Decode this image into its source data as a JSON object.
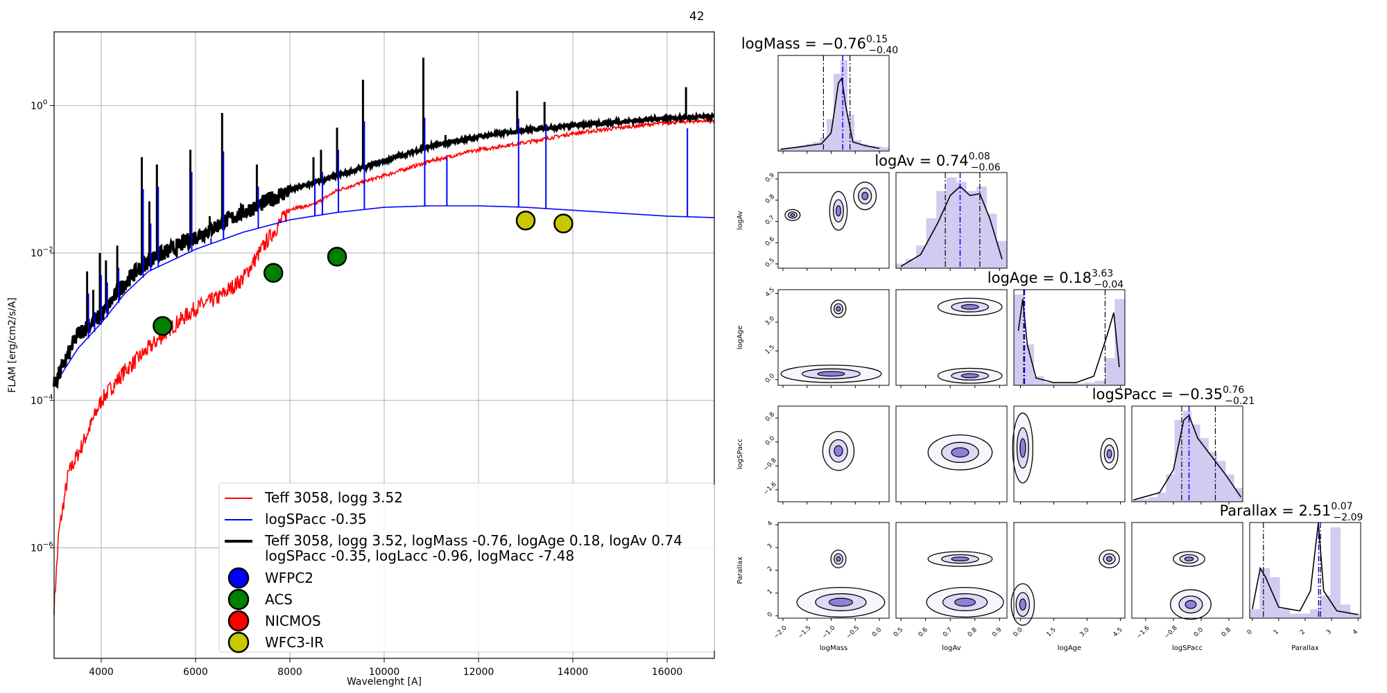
{
  "figure_id": "42",
  "colors": {
    "model_red": "#ff0000",
    "accretion_blue": "#0000ff",
    "total_black": "#000000",
    "corner_fill": "#7b68d6",
    "grid": "#b0b0b0",
    "marker_edge": "#000000"
  },
  "chart_data": [
    {
      "type": "line",
      "panel": "sed",
      "xlabel": "Wavelenght [A]",
      "ylabel": "FLAM [erg/cm2/s/A]",
      "xlim": [
        3000,
        17000
      ],
      "ylim_log10": [
        -7.5,
        1.0
      ],
      "yscale": "log",
      "grid": true,
      "legend_placement": "lower-right",
      "xticks": [
        "4000",
        "6000",
        "8000",
        "10000",
        "12000",
        "14000",
        "16000"
      ],
      "yticks": [
        {
          "base": "10",
          "exp": "0"
        },
        {
          "base": "10",
          "exp": "−2"
        },
        {
          "base": "10",
          "exp": "−4"
        },
        {
          "base": "10",
          "exp": "−6"
        }
      ],
      "series": [
        {
          "name": "Teff 3058, logg 3.52",
          "color": "#ff0000",
          "noisy": true,
          "x": [
            3000,
            3100,
            3300,
            3600,
            4000,
            4500,
            5000,
            5500,
            6000,
            6500,
            7000,
            7500,
            8000,
            8500,
            9000,
            10000,
            11000,
            12000,
            13000,
            14000,
            15000,
            16000,
            17000
          ],
          "y_log10": [
            -6.8,
            -5.8,
            -5.0,
            -4.6,
            -4.0,
            -3.6,
            -3.3,
            -3.0,
            -2.75,
            -2.6,
            -2.35,
            -1.85,
            -1.4,
            -1.35,
            -1.15,
            -0.95,
            -0.75,
            -0.6,
            -0.5,
            -0.38,
            -0.3,
            -0.23,
            -0.2
          ]
        },
        {
          "name": "logSPacc -0.35",
          "color": "#0000ff",
          "noisy": false,
          "x": [
            3000,
            3500,
            4000,
            4500,
            5000,
            6000,
            7000,
            8000,
            9000,
            10000,
            11000,
            12000,
            13000,
            14000,
            15000,
            16000,
            17000
          ],
          "y_log10": [
            -3.8,
            -3.3,
            -2.95,
            -2.55,
            -2.25,
            -1.95,
            -1.72,
            -1.55,
            -1.45,
            -1.38,
            -1.36,
            -1.36,
            -1.38,
            -1.42,
            -1.46,
            -1.5,
            -1.52
          ]
        },
        {
          "name": "Teff 3058, logg 3.52, logMass -0.76, logAge 0.18, logAv 0.74\nlogSPacc -0.35, logLacc -0.96, logMacc -7.48",
          "color": "#000000",
          "noisy": true,
          "x": [
            3000,
            3500,
            4000,
            4500,
            5000,
            5500,
            6000,
            7000,
            8000,
            9000,
            10000,
            11000,
            12000,
            13000,
            14000,
            15000,
            16000,
            17000
          ],
          "y_log10": [
            -3.8,
            -3.1,
            -2.85,
            -2.4,
            -2.1,
            -1.95,
            -1.78,
            -1.45,
            -1.15,
            -0.95,
            -0.75,
            -0.55,
            -0.42,
            -0.33,
            -0.27,
            -0.22,
            -0.17,
            -0.15
          ]
        }
      ],
      "emission_lines": [
        {
          "x": 3700,
          "peak_log10": -2.25
        },
        {
          "x": 3830,
          "peak_log10": -2.5
        },
        {
          "x": 3970,
          "peak_log10": -2.0
        },
        {
          "x": 4100,
          "peak_log10": -2.1
        },
        {
          "x": 4340,
          "peak_log10": -1.9
        },
        {
          "x": 4860,
          "peak_log10": -0.7
        },
        {
          "x": 5020,
          "peak_log10": -1.3
        },
        {
          "x": 5180,
          "peak_log10": -0.8
        },
        {
          "x": 5890,
          "peak_log10": -0.6
        },
        {
          "x": 6300,
          "peak_log10": -1.5
        },
        {
          "x": 6563,
          "peak_log10": -0.1
        },
        {
          "x": 7300,
          "peak_log10": -0.8
        },
        {
          "x": 8500,
          "peak_log10": -0.7
        },
        {
          "x": 8660,
          "peak_log10": -0.6
        },
        {
          "x": 9000,
          "peak_log10": -0.3
        },
        {
          "x": 9550,
          "peak_log10": 0.35
        },
        {
          "x": 10830,
          "peak_log10": 0.65
        },
        {
          "x": 11300,
          "peak_log10": -0.4
        },
        {
          "x": 12820,
          "peak_log10": 0.2
        },
        {
          "x": 13400,
          "peak_log10": 0.05
        },
        {
          "x": 16400,
          "peak_log10": 0.25
        }
      ],
      "photometry": [
        {
          "band": "ACS",
          "color": "#008000",
          "x": 5300,
          "y_log10": -2.99
        },
        {
          "band": "ACS",
          "color": "#008000",
          "x": 7650,
          "y_log10": -2.27
        },
        {
          "band": "ACS",
          "color": "#008000",
          "x": 9000,
          "y_log10": -2.05
        },
        {
          "band": "WFC3-IR",
          "color": "#c8c800",
          "x": 13000,
          "y_log10": -1.56
        },
        {
          "band": "WFC3-IR",
          "color": "#c8c800",
          "x": 13800,
          "y_log10": -1.6
        }
      ],
      "legend": {
        "lines": [
          {
            "label": "Teff 3058, logg 3.52",
            "color": "#ff0000"
          },
          {
            "label": "logSPacc -0.35",
            "color": "#0000ff"
          },
          {
            "label_line1": "Teff 3058, logg 3.52, logMass -0.76, logAge 0.18, logAv 0.74",
            "label_line2": "logSPacc -0.35, logLacc -0.96, logMacc -7.48",
            "color": "#000000"
          }
        ],
        "markers": [
          {
            "label": "WFPC2",
            "color": "#0000ff"
          },
          {
            "label": "ACS",
            "color": "#008000"
          },
          {
            "label": "NICMOS",
            "color": "#ff0000"
          },
          {
            "label": "WFC3-IR",
            "color": "#c8c800"
          }
        ]
      }
    },
    {
      "type": "corner",
      "panel": "posterior",
      "parameters": [
        {
          "name": "logMass",
          "median": -0.76,
          "upper": "0.15",
          "lower": "−0.40",
          "value": "−0.76",
          "range": [
            -2.1,
            0.2
          ],
          "ticks": [
            "−2.0",
            "−1.5",
            "−1.0",
            "−0.5",
            "0.0"
          ],
          "tick_values": [
            -2.0,
            -1.5,
            -1.0,
            -0.5,
            0.0
          ],
          "q16": -1.16,
          "q84": -0.61,
          "hist": [
            0.02,
            0.03,
            0.04,
            0.06,
            0.08,
            0.1,
            0.15,
            0.35,
            0.85,
            1.0,
            0.4,
            0.12,
            0.08,
            0.06,
            0.05,
            0.04
          ],
          "kde": [
            [
              -2.05,
              0.02
            ],
            [
              -1.6,
              0.05
            ],
            [
              -1.2,
              0.08
            ],
            [
              -1.0,
              0.2
            ],
            [
              -0.85,
              0.75
            ],
            [
              -0.78,
              0.8
            ],
            [
              -0.7,
              0.5
            ],
            [
              -0.55,
              0.1
            ],
            [
              -0.3,
              0.06
            ],
            [
              0.0,
              0.03
            ]
          ]
        },
        {
          "name": "logAv",
          "median": 0.74,
          "upper": "0.08",
          "lower": "−0.06",
          "value": "0.74",
          "range": [
            0.48,
            0.93
          ],
          "ticks": [
            "0.5",
            "0.6",
            "0.7",
            "0.8",
            "0.9"
          ],
          "tick_values": [
            0.5,
            0.6,
            0.7,
            0.8,
            0.9
          ],
          "q16": 0.68,
          "q84": 0.82,
          "hist": [
            0.05,
            0.1,
            0.25,
            0.55,
            0.85,
            1.0,
            0.95,
            0.85,
            0.9,
            0.6,
            0.3
          ],
          "kde": [
            [
              0.5,
              0.02
            ],
            [
              0.58,
              0.15
            ],
            [
              0.65,
              0.5
            ],
            [
              0.7,
              0.8
            ],
            [
              0.74,
              0.9
            ],
            [
              0.78,
              0.8
            ],
            [
              0.82,
              0.82
            ],
            [
              0.86,
              0.55
            ],
            [
              0.91,
              0.1
            ]
          ]
        },
        {
          "name": "logAge",
          "median": 0.18,
          "upper": "3.63",
          "lower": "−0.04",
          "value": "0.18",
          "range": [
            -0.3,
            4.7
          ],
          "ticks": [
            "0.0",
            "1.5",
            "3.0",
            "4.5"
          ],
          "tick_values": [
            0.0,
            1.5,
            3.0,
            4.5
          ],
          "q16": 0.14,
          "q84": 3.81,
          "hist": [
            1.0,
            0.45,
            0.1,
            0.03,
            0.02,
            0.02,
            0.02,
            0.03,
            0.05,
            0.3,
            0.95
          ],
          "kde": [
            [
              -0.1,
              0.6
            ],
            [
              0.1,
              0.95
            ],
            [
              0.3,
              0.45
            ],
            [
              0.7,
              0.08
            ],
            [
              1.5,
              0.03
            ],
            [
              2.5,
              0.03
            ],
            [
              3.3,
              0.1
            ],
            [
              3.9,
              0.55
            ],
            [
              4.2,
              0.8
            ],
            [
              4.45,
              0.2
            ]
          ]
        },
        {
          "name": "logSPacc",
          "median": -0.35,
          "upper": "0.76",
          "lower": "−0.21",
          "value": "−0.35",
          "range": [
            -2.0,
            1.2
          ],
          "ticks": [
            "−1.6",
            "−0.8",
            "0.0",
            "0.8"
          ],
          "tick_values": [
            -1.6,
            -0.8,
            0.0,
            0.8
          ],
          "q16": -0.56,
          "q84": 0.41,
          "hist": [
            0.02,
            0.03,
            0.05,
            0.1,
            0.3,
            0.9,
            1.0,
            0.85,
            0.7,
            0.55,
            0.45,
            0.3,
            0.15
          ],
          "kde": [
            [
              -1.95,
              0.02
            ],
            [
              -1.2,
              0.1
            ],
            [
              -0.8,
              0.35
            ],
            [
              -0.5,
              0.9
            ],
            [
              -0.35,
              0.95
            ],
            [
              -0.1,
              0.7
            ],
            [
              0.3,
              0.5
            ],
            [
              0.7,
              0.3
            ],
            [
              1.15,
              0.05
            ]
          ]
        },
        {
          "name": "Parallax",
          "median": 2.51,
          "upper": "0.07",
          "lower": "−2.09",
          "value": "2.51",
          "range": [
            -0.1,
            4.1
          ],
          "ticks": [
            "0",
            "1",
            "2",
            "3",
            "4"
          ],
          "tick_values": [
            0,
            1,
            2,
            3,
            4
          ],
          "q16": 0.42,
          "q84": 2.58,
          "hist": [
            0.1,
            0.55,
            0.45,
            0.1,
            0.05,
            0.05,
            0.1,
            0.25,
            1.0,
            0.15,
            0.05
          ],
          "kde": [
            [
              0.0,
              0.1
            ],
            [
              0.3,
              0.55
            ],
            [
              0.5,
              0.45
            ],
            [
              1.0,
              0.12
            ],
            [
              1.8,
              0.08
            ],
            [
              2.2,
              0.3
            ],
            [
              2.5,
              1.05
            ],
            [
              2.7,
              0.3
            ],
            [
              3.2,
              0.08
            ],
            [
              4.0,
              0.04
            ]
          ]
        }
      ],
      "joint": [
        {
          "row": 1,
          "col": 0,
          "blobs": [
            [
              -0.85,
              0.75,
              0.14,
              0.07
            ],
            [
              -1.8,
              0.73,
              0.12,
              0.02
            ],
            [
              -0.3,
              0.82,
              0.18,
              0.05
            ]
          ]
        },
        {
          "row": 2,
          "col": 0,
          "blobs": [
            [
              -0.85,
              3.7,
              0.12,
              0.35
            ],
            [
              -1.0,
              0.3,
              0.8,
              0.35
            ]
          ]
        },
        {
          "row": 2,
          "col": 1,
          "blobs": [
            [
              0.78,
              3.8,
              0.1,
              0.35
            ],
            [
              0.78,
              0.2,
              0.1,
              0.3
            ]
          ]
        },
        {
          "row": 3,
          "col": 0,
          "blobs": [
            [
              -0.85,
              -0.3,
              0.25,
              0.5
            ]
          ]
        },
        {
          "row": 3,
          "col": 1,
          "blobs": [
            [
              0.74,
              -0.35,
              0.1,
              0.45
            ]
          ]
        },
        {
          "row": 3,
          "col": 2,
          "blobs": [
            [
              0.1,
              -0.2,
              0.35,
              0.9
            ],
            [
              4.0,
              -0.4,
              0.3,
              0.4
            ]
          ]
        },
        {
          "row": 4,
          "col": 0,
          "blobs": [
            [
              -0.85,
              2.5,
              0.12,
              0.3
            ],
            [
              -0.8,
              0.6,
              0.7,
              0.5
            ]
          ]
        },
        {
          "row": 4,
          "col": 1,
          "blobs": [
            [
              0.74,
              2.5,
              0.1,
              0.25
            ],
            [
              0.76,
              0.6,
              0.12,
              0.5
            ]
          ]
        },
        {
          "row": 4,
          "col": 2,
          "blobs": [
            [
              0.1,
              0.5,
              0.4,
              0.7
            ],
            [
              4.0,
              2.5,
              0.35,
              0.3
            ]
          ]
        },
        {
          "row": 4,
          "col": 3,
          "blobs": [
            [
              -0.35,
              2.5,
              0.35,
              0.25
            ],
            [
              -0.3,
              0.5,
              0.45,
              0.5
            ]
          ]
        }
      ]
    }
  ]
}
